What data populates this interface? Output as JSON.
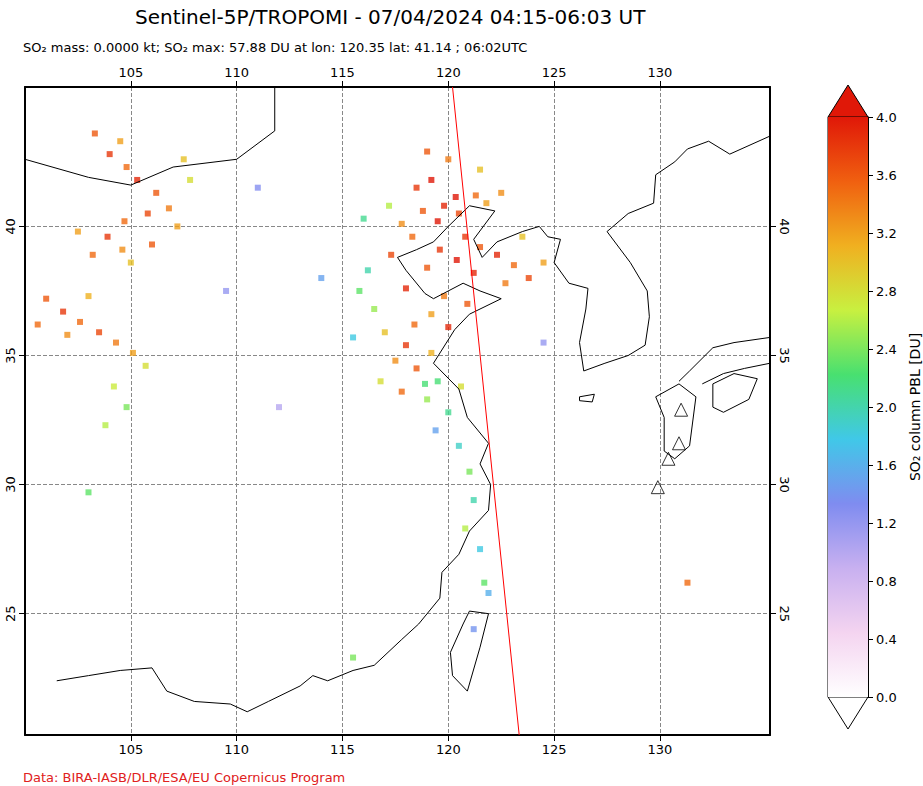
{
  "chart_data": {
    "type": "scatter",
    "title": "Sentinel-5P/TROPOMI - 07/04/2024 04:15-06:03 UT",
    "subtitle": "SO₂ mass: 0.0000 kt; SO₂ max: 57.88 DU at lon: 120.35 lat: 41.14 ; 06:02UTC",
    "credit": "Data: BIRA-IASB/DLR/ESA/EU Copernicus Program",
    "xlim": [
      100,
      135.2
    ],
    "ylim": [
      20.3,
      45.4
    ],
    "xticks": [
      105,
      110,
      115,
      120,
      125,
      130
    ],
    "yticks": [
      25,
      30,
      35,
      40
    ],
    "grid": true,
    "marker": "square",
    "points": [
      [
        118.5,
        41.5,
        3.8
      ],
      [
        119.2,
        41.8,
        4.2
      ],
      [
        120.35,
        41.14,
        57.88
      ],
      [
        119.8,
        40.8,
        3.9
      ],
      [
        118.8,
        40.6,
        3.6
      ],
      [
        119.5,
        40.2,
        4.5
      ],
      [
        120.5,
        40.5,
        3.7
      ],
      [
        121.3,
        41.2,
        3.5
      ],
      [
        121.8,
        40.9,
        3.2
      ],
      [
        122.5,
        41.3,
        3.3
      ],
      [
        120.8,
        39.6,
        3.8
      ],
      [
        121.5,
        39.2,
        3.6
      ],
      [
        122.3,
        38.9,
        3.9
      ],
      [
        123.1,
        38.5,
        3.5
      ],
      [
        123.8,
        38.0,
        3.7
      ],
      [
        122.7,
        37.8,
        3.4
      ],
      [
        121.2,
        38.2,
        3.9
      ],
      [
        120.4,
        38.7,
        4.1
      ],
      [
        119.6,
        39.1,
        3.8
      ],
      [
        119.0,
        38.4,
        3.6
      ],
      [
        118.3,
        39.6,
        3.5
      ],
      [
        117.8,
        40.1,
        3.3
      ],
      [
        117.3,
        38.9,
        3.7
      ],
      [
        118.0,
        37.6,
        3.9
      ],
      [
        119.8,
        37.3,
        3.4
      ],
      [
        120.9,
        37.0,
        3.6
      ],
      [
        119.2,
        36.6,
        3.2
      ],
      [
        118.4,
        36.2,
        3.5
      ],
      [
        120.0,
        36.1,
        3.9
      ],
      [
        124.5,
        38.6,
        3.2
      ],
      [
        123.5,
        39.6,
        3.0
      ],
      [
        120.0,
        42.6,
        3.4
      ],
      [
        119.0,
        42.9,
        3.6
      ],
      [
        121.5,
        42.2,
        3.0
      ],
      [
        118.0,
        35.4,
        3.8
      ],
      [
        117.5,
        34.8,
        3.3
      ],
      [
        118.5,
        34.5,
        3.6
      ],
      [
        119.2,
        35.1,
        3.1
      ],
      [
        116.8,
        34.0,
        2.8
      ],
      [
        117.8,
        33.6,
        3.5
      ],
      [
        119.0,
        33.3,
        2.5
      ],
      [
        117.0,
        35.9,
        3.0
      ],
      [
        119.5,
        34.0,
        2.2
      ],
      [
        120.0,
        32.8,
        2.1
      ],
      [
        120.5,
        31.5,
        1.9
      ],
      [
        121.0,
        30.5,
        2.4
      ],
      [
        121.2,
        29.4,
        2.0
      ],
      [
        120.8,
        28.3,
        2.6
      ],
      [
        121.5,
        27.5,
        1.8
      ],
      [
        121.7,
        26.2,
        2.3
      ],
      [
        121.9,
        25.8,
        1.6
      ],
      [
        121.2,
        24.4,
        1.4
      ],
      [
        120.6,
        33.8,
        2.8
      ],
      [
        119.4,
        32.1,
        1.5
      ],
      [
        118.9,
        33.9,
        2.2
      ],
      [
        115.8,
        37.5,
        2.3
      ],
      [
        116.2,
        38.3,
        2.0
      ],
      [
        116.5,
        36.8,
        2.5
      ],
      [
        115.5,
        35.7,
        1.8
      ],
      [
        117.2,
        40.8,
        2.6
      ],
      [
        116.0,
        40.3,
        2.1
      ],
      [
        104.0,
        42.8,
        3.8
      ],
      [
        104.8,
        42.3,
        3.5
      ],
      [
        105.3,
        41.8,
        3.9
      ],
      [
        106.2,
        41.3,
        3.6
      ],
      [
        106.8,
        40.7,
        3.4
      ],
      [
        107.2,
        40.0,
        3.2
      ],
      [
        105.8,
        40.5,
        3.7
      ],
      [
        104.7,
        40.2,
        3.5
      ],
      [
        103.9,
        39.6,
        3.8
      ],
      [
        104.6,
        39.1,
        3.3
      ],
      [
        106.0,
        39.3,
        3.6
      ],
      [
        102.5,
        39.8,
        3.2
      ],
      [
        105.0,
        38.6,
        3.0
      ],
      [
        103.2,
        38.9,
        3.5
      ],
      [
        107.8,
        41.8,
        2.8
      ],
      [
        107.5,
        42.6,
        3.0
      ],
      [
        103.3,
        43.6,
        3.6
      ],
      [
        104.5,
        43.3,
        3.2
      ],
      [
        101.0,
        37.2,
        3.6
      ],
      [
        101.8,
        36.7,
        3.8
      ],
      [
        102.6,
        36.3,
        3.5
      ],
      [
        103.5,
        35.9,
        3.7
      ],
      [
        104.3,
        35.5,
        3.4
      ],
      [
        105.1,
        35.1,
        3.2
      ],
      [
        102.0,
        35.8,
        3.3
      ],
      [
        100.6,
        36.2,
        3.5
      ],
      [
        103.0,
        37.3,
        3.1
      ],
      [
        105.7,
        34.6,
        2.8
      ],
      [
        104.2,
        33.8,
        2.7
      ],
      [
        104.8,
        33.0,
        2.4
      ],
      [
        103.8,
        32.3,
        2.6
      ],
      [
        131.3,
        26.2,
        3.5
      ],
      [
        103.0,
        29.7,
        2.3
      ],
      [
        114.0,
        38.0,
        1.5
      ],
      [
        109.5,
        37.5,
        1.2
      ],
      [
        112.0,
        33.0,
        1.0
      ],
      [
        124.5,
        35.5,
        1.2
      ],
      [
        115.5,
        23.3,
        2.4
      ],
      [
        111.0,
        41.5,
        1.3
      ]
    ],
    "coastlines": [
      [
        [
          108.0,
          21.6
        ],
        [
          109.7,
          21.5
        ],
        [
          110.5,
          21.2
        ],
        [
          111.5,
          21.6
        ],
        [
          113.0,
          22.2
        ],
        [
          113.6,
          22.6
        ],
        [
          114.3,
          22.4
        ],
        [
          115.5,
          22.8
        ],
        [
          116.5,
          23.0
        ],
        [
          117.8,
          24.0
        ],
        [
          118.6,
          24.6
        ],
        [
          119.6,
          25.6
        ],
        [
          119.7,
          26.6
        ],
        [
          120.5,
          27.3
        ],
        [
          121.0,
          28.2
        ],
        [
          121.9,
          29.0
        ],
        [
          122.0,
          30.0
        ],
        [
          121.5,
          30.8
        ],
        [
          121.9,
          31.6
        ],
        [
          120.9,
          32.6
        ],
        [
          120.5,
          33.7
        ],
        [
          119.3,
          34.7
        ],
        [
          120.3,
          36.0
        ],
        [
          121.0,
          36.6
        ],
        [
          122.5,
          37.2
        ],
        [
          121.5,
          37.5
        ],
        [
          120.7,
          37.8
        ],
        [
          119.3,
          37.2
        ],
        [
          118.9,
          37.4
        ],
        [
          118.0,
          38.3
        ],
        [
          117.6,
          38.8
        ],
        [
          118.5,
          39.1
        ],
        [
          119.3,
          39.4
        ],
        [
          120.0,
          40.0
        ],
        [
          121.0,
          40.8
        ],
        [
          122.2,
          40.6
        ],
        [
          121.2,
          39.5
        ],
        [
          121.6,
          38.8
        ],
        [
          122.3,
          39.4
        ],
        [
          123.5,
          39.8
        ],
        [
          124.3,
          40.0
        ],
        [
          124.7,
          39.6
        ],
        [
          125.3,
          39.5
        ],
        [
          125.0,
          38.6
        ],
        [
          125.7,
          37.8
        ],
        [
          126.6,
          37.6
        ],
        [
          126.5,
          36.8
        ],
        [
          126.2,
          35.5
        ],
        [
          126.4,
          34.4
        ],
        [
          127.4,
          34.7
        ],
        [
          128.5,
          35.0
        ],
        [
          129.3,
          35.4
        ],
        [
          129.5,
          36.5
        ],
        [
          129.4,
          37.5
        ],
        [
          128.6,
          38.6
        ],
        [
          127.5,
          39.8
        ],
        [
          128.5,
          40.5
        ],
        [
          129.7,
          40.9
        ],
        [
          129.8,
          42.0
        ],
        [
          130.7,
          42.5
        ],
        [
          131.3,
          43.0
        ],
        [
          132.3,
          43.3
        ],
        [
          133.3,
          42.8
        ],
        [
          135.2,
          43.5
        ]
      ],
      [
        [
          121.0,
          25.1
        ],
        [
          121.9,
          25.0
        ],
        [
          121.5,
          23.7
        ],
        [
          120.9,
          22.0
        ],
        [
          120.2,
          22.6
        ],
        [
          120.1,
          23.5
        ],
        [
          120.7,
          24.6
        ],
        [
          121.0,
          25.1
        ]
      ],
      [
        [
          129.8,
          33.4
        ],
        [
          130.9,
          33.9
        ],
        [
          131.7,
          33.4
        ],
        [
          131.4,
          31.5
        ],
        [
          130.7,
          31.0
        ],
        [
          130.2,
          31.3
        ],
        [
          130.2,
          32.6
        ],
        [
          129.8,
          33.4
        ]
      ],
      [
        [
          130.9,
          34.0
        ],
        [
          131.4,
          34.4
        ],
        [
          132.5,
          35.3
        ],
        [
          133.5,
          35.5
        ],
        [
          135.2,
          35.7
        ]
      ],
      [
        [
          132.0,
          33.9
        ],
        [
          133.0,
          34.3
        ],
        [
          134.0,
          34.5
        ],
        [
          135.2,
          34.7
        ]
      ],
      [
        [
          132.5,
          33.0
        ],
        [
          133.0,
          32.8
        ],
        [
          134.2,
          33.3
        ],
        [
          134.6,
          34.1
        ],
        [
          133.5,
          34.3
        ],
        [
          132.5,
          33.9
        ],
        [
          132.5,
          33.0
        ]
      ],
      [
        [
          126.2,
          33.4
        ],
        [
          126.9,
          33.5
        ],
        [
          126.8,
          33.2
        ],
        [
          126.2,
          33.25
        ],
        [
          126.2,
          33.4
        ]
      ],
      [
        [
          100.0,
          42.6
        ],
        [
          103.0,
          41.9
        ],
        [
          105.0,
          41.6
        ],
        [
          107.0,
          42.3
        ],
        [
          110.0,
          42.6
        ],
        [
          111.8,
          43.7
        ],
        [
          111.8,
          45.4
        ]
      ],
      [
        [
          101.5,
          22.4
        ],
        [
          103.0,
          22.6
        ],
        [
          104.5,
          22.8
        ],
        [
          106.0,
          22.9
        ],
        [
          106.7,
          22.0
        ],
        [
          108.0,
          21.6
        ]
      ]
    ],
    "orbit_edge": [
      [
        120.2,
        45.4
      ],
      [
        123.35,
        20.3
      ]
    ],
    "volcanoes": [
      [
        131.0,
        32.9
      ],
      [
        130.9,
        31.6
      ],
      [
        130.4,
        31.0
      ],
      [
        129.9,
        29.9
      ]
    ],
    "colorbar": {
      "label": "SO₂ column PBL [DU]",
      "range": [
        0,
        4
      ],
      "ticks": [
        {
          "value": 0,
          "label": "0.0"
        },
        {
          "value": 0.4,
          "label": "0.4"
        },
        {
          "value": 0.8,
          "label": "0.8"
        },
        {
          "value": 1.2,
          "label": "1.2"
        },
        {
          "value": 1.6,
          "label": "1.6"
        },
        {
          "value": 2,
          "label": "2.0"
        },
        {
          "value": 2.4,
          "label": "2.4"
        },
        {
          "value": 2.8,
          "label": "2.8"
        },
        {
          "value": 3.2,
          "label": "3.2"
        },
        {
          "value": 3.6,
          "label": "3.6"
        },
        {
          "value": 4,
          "label": "4.0"
        }
      ],
      "colors": [
        "#ffffff",
        "#f4d4f0",
        "#c8b0f0",
        "#7f8cf0",
        "#40c8e8",
        "#48e070",
        "#c8f040",
        "#f0b020",
        "#f06010",
        "#e01808"
      ]
    }
  }
}
